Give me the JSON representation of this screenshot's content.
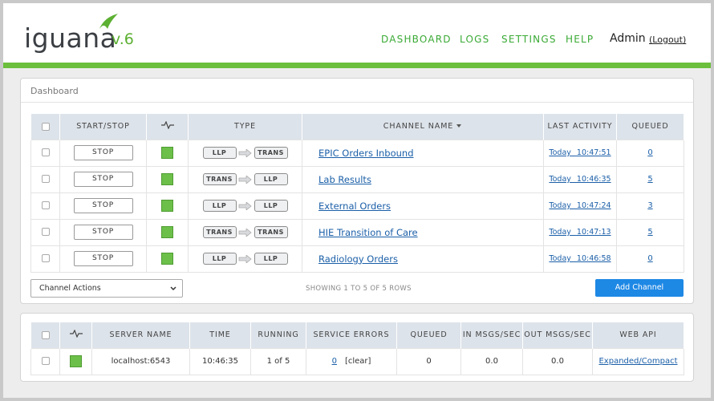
{
  "header": {
    "logo": "iguana",
    "version": "v.6",
    "nav": [
      "DASHBOARD",
      "LOGS",
      "SETTINGS",
      "HELP"
    ],
    "user": "Admin",
    "logout": "(Logout)"
  },
  "dashboard": {
    "title": "Dashboard",
    "columns": [
      "START/STOP",
      "TYPE",
      "CHANNEL NAME",
      "LAST ACTIVITY",
      "QUEUED"
    ],
    "rows": [
      {
        "action": "STOP",
        "source": "LLP",
        "dest": "TRANS",
        "name": "EPIC Orders Inbound",
        "last_activity": "Today 10:47:51",
        "queued": 0
      },
      {
        "action": "STOP",
        "source": "TRANS",
        "dest": "LLP",
        "name": "Lab Results",
        "last_activity": "Today 10:46:35",
        "queued": 5
      },
      {
        "action": "STOP",
        "source": "LLP",
        "dest": "LLP",
        "name": "External Orders",
        "last_activity": "Today 10:47:24",
        "queued": 3
      },
      {
        "action": "STOP",
        "source": "TRANS",
        "dest": "TRANS",
        "name": "HIE Transition of Care",
        "last_activity": "Today 10:47:13",
        "queued": 5
      },
      {
        "action": "STOP",
        "source": "LLP",
        "dest": "LLP",
        "name": "Radiology Orders",
        "last_activity": "Today 10:46:58",
        "queued": 0
      }
    ],
    "actions": "Channel Actions",
    "showing": "SHOWING 1 TO 5 OF 5 ROWS",
    "add": "Add Channel"
  },
  "server": {
    "columns": [
      "SERVER NAME",
      "TIME",
      "RUNNING",
      "SERVICE ERRORS",
      "QUEUED",
      "IN MSGS/SEC",
      "OUT MSGS/SEC",
      "WEB API"
    ],
    "row": {
      "server_name": "localhost:6543",
      "time": "10:46:35",
      "running": "1 of 5",
      "service_errors": 0,
      "clear": "[clear]",
      "queued": 0,
      "in": "0.0",
      "out": "0.0",
      "web_api": "Expanded/Compact"
    }
  }
}
